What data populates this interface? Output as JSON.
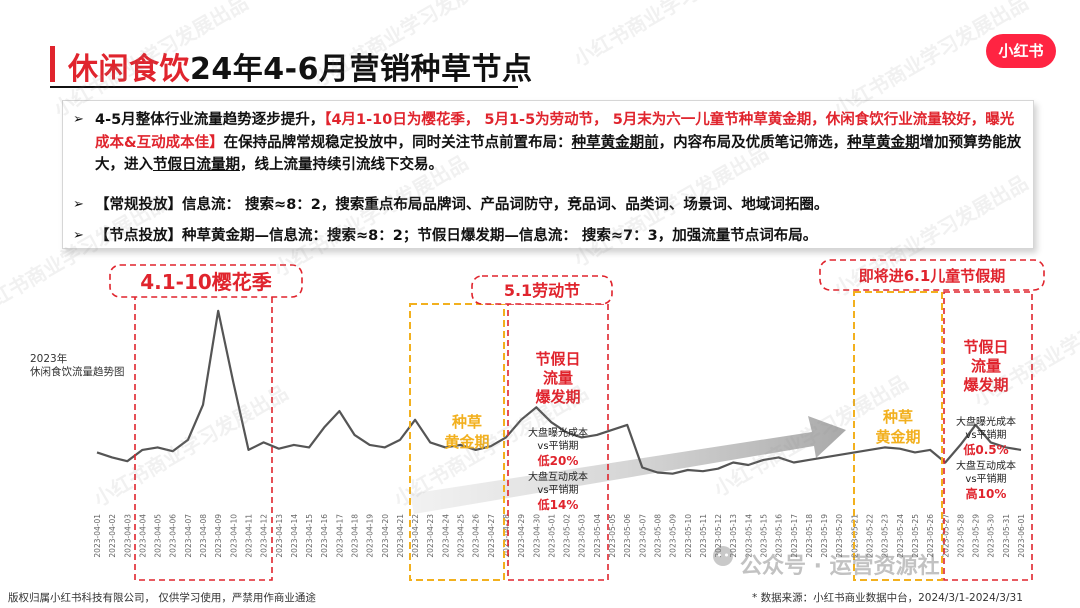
{
  "header": {
    "title_red": "休闲食饮",
    "title_black": "24年4-6月营销种草节点",
    "logo_text": "小红书"
  },
  "bullets": {
    "b1_pre": "4-5月整体行业流量趋势逐步提升，",
    "b1_red": "【4月1-10日为樱花季， 5月1-5为劳动节， 5月末为六一儿童节种草黄金期，休闲食饮行业流量较好，曝光成本&互动成本佳】",
    "b1_mid": "在保持品牌常规稳定投放中，同时关注节点前置布局：",
    "b1_ul1": "种草黄金期前",
    "b1_mid2": "，内容布局及优质笔记筛选，",
    "b1_ul2": "种草黄金期",
    "b1_mid3": "增加预算势能放大，进入",
    "b1_ul3": "节假日流量期",
    "b1_post": "，线上流量持续引流线下交易。",
    "b2": "【常规投放】信息流： 搜索≈8：2，搜索重点布局品牌词、产品词防守，竞品词、品类词、场景词、地域词拓圈。",
    "b3": "【节点投放】种草黄金期—信息流：搜索≈8：2；节假日爆发期—信息流： 搜索≈7：3，加强流量节点词布局。"
  },
  "annotations": {
    "sakura": "4.1-10樱花季",
    "labor_day": "5.1劳动节",
    "children_day": "即将进6.1儿童节假期",
    "peak1": [
      "节假日",
      "流量",
      "爆发期"
    ],
    "golden1": [
      "种草",
      "黄金期"
    ],
    "golden2": [
      "种草",
      "黄金期"
    ],
    "peak2": [
      "节假日",
      "流量",
      "爆发期"
    ],
    "cost1_l1": "大盘曝光成本",
    "cost1_l2": "vs平销期",
    "cost1_l3": "低20%",
    "cost2_l1": "大盘互动成本",
    "cost2_l2": "vs平销期",
    "cost2_l3": "低14%",
    "cost3_l1": "大盘曝光成本",
    "cost3_l2": "vs平销期",
    "cost3_l3": "低0.5%",
    "cost4_l1": "大盘互动成本",
    "cost4_l2": "vs平销期",
    "cost4_l3": "高10%"
  },
  "footer": {
    "left": "版权归属小红书科技有限公司， 仅供学习使用，严禁用作商业通途",
    "right": "* 数据来源：小红书商业数据中台，2024/3/1-2024/3/31",
    "watermark_official": "公众号 · 运营资源社"
  },
  "watermarks": [
    "小红书商业学习发展出品"
  ],
  "colors": {
    "accent_red": "#e0242d",
    "gold": "#f2b01e",
    "line": "#555555"
  },
  "chart_data": {
    "type": "line",
    "title": "2023年 休闲食饮流量趋势图",
    "title_lines": [
      "2023年",
      "休闲食饮流量趋势图"
    ],
    "x": [
      "2023-04-01",
      "2023-04-02",
      "2023-04-03",
      "2023-04-04",
      "2023-04-05",
      "2023-04-06",
      "2023-04-07",
      "2023-04-08",
      "2023-04-09",
      "2023-04-10",
      "2023-04-11",
      "2023-04-12",
      "2023-04-13",
      "2023-04-14",
      "2023-04-15",
      "2023-04-16",
      "2023-04-17",
      "2023-04-18",
      "2023-04-19",
      "2023-04-20",
      "2023-04-21",
      "2023-04-22",
      "2023-04-23",
      "2023-04-24",
      "2023-04-25",
      "2023-04-26",
      "2023-04-27",
      "2023-04-28",
      "2023-04-29",
      "2023-04-30",
      "2023-05-01",
      "2023-05-02",
      "2023-05-03",
      "2023-05-04",
      "2023-05-05",
      "2023-05-06",
      "2023-05-07",
      "2023-05-08",
      "2023-05-09",
      "2023-05-10",
      "2023-05-11",
      "2023-05-12",
      "2023-05-13",
      "2023-05-14",
      "2023-05-15",
      "2023-05-16",
      "2023-05-17",
      "2023-05-18",
      "2023-05-19",
      "2023-05-20",
      "2023-05-21",
      "2023-05-22",
      "2023-05-23",
      "2023-05-24",
      "2023-05-25",
      "2023-05-26",
      "2023-05-27",
      "2023-05-28",
      "2023-05-29",
      "2023-05-30",
      "2023-05-31",
      "2023-06-01"
    ],
    "values": [
      22,
      18,
      15,
      24,
      26,
      23,
      32,
      60,
      135,
      78,
      24,
      30,
      25,
      28,
      26,
      42,
      55,
      36,
      28,
      26,
      32,
      48,
      30,
      26,
      28,
      24,
      27,
      34,
      48,
      58,
      46,
      38,
      34,
      36,
      40,
      44,
      10,
      6,
      5,
      8,
      7,
      9,
      14,
      12,
      16,
      18,
      14,
      16,
      18,
      20,
      22,
      24,
      26,
      25,
      22,
      24,
      14,
      28,
      44,
      30,
      26,
      24
    ],
    "ylim": [
      0,
      150
    ],
    "grid": false,
    "legend": "none",
    "series": [
      {
        "values": [
          22,
          18,
          15,
          24,
          26,
          23,
          32,
          60,
          135,
          78,
          24,
          30,
          25,
          28,
          26,
          42,
          55,
          36,
          28,
          26,
          32,
          48,
          30,
          26,
          28,
          24,
          27,
          34,
          48,
          58,
          46,
          38,
          34,
          36,
          40,
          44,
          10,
          6,
          5,
          8,
          7,
          9,
          14,
          12,
          16,
          18,
          14,
          16,
          18,
          20,
          22,
          24,
          26,
          25,
          22,
          24,
          14,
          28,
          44,
          30,
          26,
          24
        ]
      }
    ],
    "trend_arrow": "up"
  }
}
